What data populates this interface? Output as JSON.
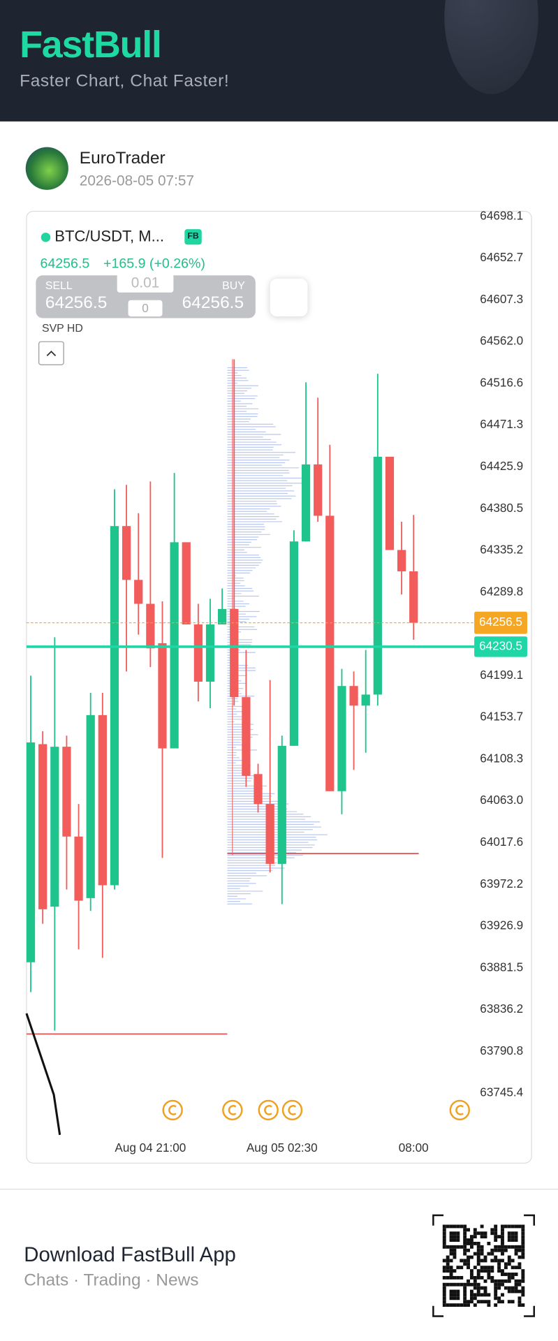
{
  "header": {
    "title": "FastBull",
    "subtitle": "Faster Chart, Chat Faster!"
  },
  "post": {
    "author": "EuroTrader",
    "time": "2026-08-05 07:57"
  },
  "widget": {
    "symbol": "BTC/USDT, M...",
    "badge": "FB",
    "price": "64256.5",
    "change": "+165.9 (+0.26%)",
    "sell_label": "SELL",
    "buy_label": "BUY",
    "sell_price": "64256.5",
    "buy_price": "64256.5",
    "lot": "0.01",
    "spread": "0",
    "indicator": "SVP HD"
  },
  "chart_data": {
    "type": "candlestick",
    "categories": [
      null,
      null,
      null,
      null,
      null,
      null,
      null,
      null,
      null,
      null,
      "Aug 04 21:00",
      null,
      null,
      null,
      null,
      null,
      null,
      null,
      null,
      null,
      null,
      "Aug 05 02:30",
      null,
      null,
      null,
      null,
      null,
      null,
      null,
      null,
      null,
      null,
      "08:00"
    ],
    "open": [
      63887.6,
      64124.6,
      63948.0,
      64121.8,
      64024.2,
      63957.3,
      64156.2,
      63971.3,
      64361.6,
      64303.1,
      64277.1,
      64234.3,
      64120.0,
      64344.0,
      64254.7,
      64192.5,
      64254.7,
      64271.5,
      64175.7,
      64092.1,
      64059.6,
      63994.5,
      64122.8,
      64344.9,
      64428.6,
      64372.8,
      64073.5,
      64187.8,
      64166.5,
      64178.5,
      64436.9,
      64335.6,
      64312.4
    ],
    "high": [
      64199.0,
      64138.6,
      64240.8,
      64133.9,
      64059.6,
      64180.4,
      64180.4,
      64401.6,
      64406.3,
      64375.6,
      64410.0,
      64279.8,
      64419.3,
      64344.0,
      64277.1,
      64282.6,
      64293.8,
      64542.9,
      64226.9,
      64103.3,
      64194.3,
      64133.9,
      64357.0,
      64517.8,
      64501.1,
      64449.9,
      64206.4,
      64203.6,
      64226.9,
      64527.1,
      64436.9,
      64366.3,
      64373.7
    ],
    "low": [
      63855.1,
      63929.4,
      63813.3,
      63966.6,
      63901.6,
      63943.4,
      63892.3,
      63966.6,
      64203.6,
      64243.6,
      64208.3,
      64001.0,
      64120.0,
      64254.7,
      64171.1,
      64163.7,
      64254.7,
      64166.5,
      64078.2,
      64050.3,
      63985.2,
      63950.8,
      64122.8,
      64344.9,
      64366.3,
      64073.5,
      64048.4,
      64096.7,
      64115.3,
      64166.5,
      64335.6,
      64287.3,
      64238.0
    ],
    "close": [
      64126.5,
      63945.2,
      64121.8,
      64024.2,
      63954.5,
      64156.2,
      63971.3,
      64361.6,
      64303.1,
      64277.1,
      64228.7,
      64120.0,
      64344.0,
      64254.7,
      64192.5,
      64254.7,
      64271.5,
      64175.7,
      64090.2,
      64059.6,
      63994.5,
      64122.8,
      64344.9,
      64428.6,
      64372.8,
      64073.5,
      64187.8,
      64166.5,
      64178.5,
      64436.9,
      64335.6,
      64312.4,
      64256.5
    ],
    "up_color": "#1fc48d",
    "down_color": "#f25c5a",
    "ylim": [
      63700,
      64703.7
    ],
    "yticks": [
      64698.1,
      64652.7,
      64607.3,
      {
        "value": 64562.0,
        "label": "64562.0"
      },
      64516.6,
      64471.3,
      64425.9,
      64380.5,
      64335.2,
      64289.8,
      64199.1,
      64153.7,
      64108.3,
      {
        "value": 64063.0,
        "label": "64063.0"
      },
      64017.6,
      63972.2,
      63926.9,
      63881.5,
      63836.2,
      63790.8,
      63745.4
    ],
    "last_price": 64256.5,
    "last_color": "#f5a623",
    "reference_price": 64230.5,
    "reference_color": "#1fd6a6"
  },
  "footer": {
    "title": "Download FastBull App",
    "subtitle": "Chats · Trading · News"
  }
}
